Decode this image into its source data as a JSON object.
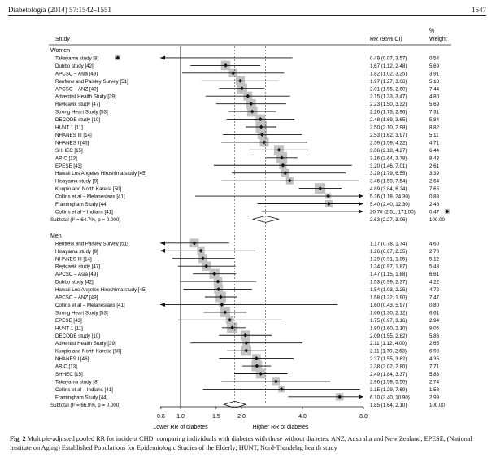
{
  "header": {
    "left": "Diabetologia (2014) 57:1542–1551",
    "right": "1547"
  },
  "columns": {
    "study": "Study",
    "rr": "RR (95% CI)",
    "weight_line1": "%",
    "weight_line2": "Weight"
  },
  "x_axis": {
    "ticks": [
      "0.8",
      "1.0",
      "1.5",
      "2.0",
      "4.0",
      "8.0"
    ],
    "left_label": "Lower RR of diabetes",
    "right_label": "Higher RR of diabetes"
  },
  "caption": {
    "label": "Fig. 2",
    "text": "Multiple-adjusted pooled RR for incident CHD, comparing individuals with diabetes with those without diabetes. ANZ, Australia and New Zealand; EPESE, (National Institute on Aging) Established Populations for Epidemiologic Studies of the Elderly; HUNT, Nord-Trøndelag health study"
  },
  "chart_data": {
    "type": "forest",
    "x_scale": "log",
    "xlim": [
      0.8,
      8.0
    ],
    "reference_line": 1.0,
    "groups": [
      {
        "name": "Women",
        "studies": [
          {
            "study": "Takayama study [8]",
            "rr": 0.49,
            "lo": 0.07,
            "hi": 3.57,
            "rr_text": "0.49 (0.07, 3.57)",
            "weight": "0.54",
            "weight_value": 0.54
          },
          {
            "study": "Dubbo study [42]",
            "rr": 1.67,
            "lo": 1.12,
            "hi": 2.48,
            "rr_text": "1.67 (1.12, 2.48)",
            "weight": "5.69",
            "weight_value": 5.69
          },
          {
            "study": "APCSC – Asia [49]",
            "rr": 1.82,
            "lo": 1.02,
            "hi": 3.25,
            "rr_text": "1.82 (1.02, 3.25)",
            "weight": "3.91",
            "weight_value": 3.91
          },
          {
            "study": "Renfrew and Paisley Survey [51]",
            "rr": 1.97,
            "lo": 1.27,
            "hi": 3.08,
            "rr_text": "1.97 (1.27, 3.08)",
            "weight": "5.18",
            "weight_value": 5.18
          },
          {
            "study": "APCSC – ANZ [49]",
            "rr": 2.01,
            "lo": 1.55,
            "hi": 2.6,
            "rr_text": "2.01 (1.55, 2.60)",
            "weight": "7.44",
            "weight_value": 7.44
          },
          {
            "study": "Adventist Health Study [39]",
            "rr": 2.15,
            "lo": 1.33,
            "hi": 3.47,
            "rr_text": "2.15 (1.33, 3.47)",
            "weight": "4.80",
            "weight_value": 4.8
          },
          {
            "study": "Reykjavik study [47]",
            "rr": 2.23,
            "lo": 1.5,
            "hi": 3.32,
            "rr_text": "2.23 (1.50, 3.32)",
            "weight": "5.69",
            "weight_value": 5.69
          },
          {
            "study": "Strong Heart Study [53]",
            "rr": 2.26,
            "lo": 1.73,
            "hi": 2.96,
            "rr_text": "2.26 (1.73, 2.96)",
            "weight": "7.31",
            "weight_value": 7.31
          },
          {
            "study": "DECODE study [10]",
            "rr": 2.48,
            "lo": 1.69,
            "hi": 3.65,
            "rr_text": "2.48 (1.69, 3.65)",
            "weight": "5.84",
            "weight_value": 5.84
          },
          {
            "study": "HUNT 1 [11]",
            "rr": 2.5,
            "lo": 2.1,
            "hi": 2.98,
            "rr_text": "2.50 (2.10, 2.98)",
            "weight": "8.82",
            "weight_value": 8.82
          },
          {
            "study": "NHANES III [14]",
            "rr": 2.53,
            "lo": 1.62,
            "hi": 3.97,
            "rr_text": "2.53 (1.62, 3.97)",
            "weight": "5.11",
            "weight_value": 5.11
          },
          {
            "study": "NHANES I [46]",
            "rr": 2.59,
            "lo": 1.59,
            "hi": 4.22,
            "rr_text": "2.59 (1.59, 4.22)",
            "weight": "4.71",
            "weight_value": 4.71
          },
          {
            "study": "SHHEC [15]",
            "rr": 3.06,
            "lo": 2.18,
            "hi": 4.27,
            "rr_text": "3.06 (2.18, 4.27)",
            "weight": "6.44",
            "weight_value": 6.44
          },
          {
            "study": "ARIC [13]",
            "rr": 3.16,
            "lo": 2.64,
            "hi": 3.78,
            "rr_text": "3.16 (2.64, 3.78)",
            "weight": "8.43",
            "weight_value": 8.43
          },
          {
            "study": "EPESE [43]",
            "rr": 3.2,
            "lo": 1.46,
            "hi": 7.01,
            "rr_text": "3.20 (1.46, 7.01)",
            "weight": "2.61",
            "weight_value": 2.61
          },
          {
            "study": "Hawaii Los Angeles Hiroshima study [45]",
            "rr": 3.29,
            "lo": 1.79,
            "hi": 6.55,
            "rr_text": "3.29 (1.79, 6.55)",
            "weight": "3.39",
            "weight_value": 3.39
          },
          {
            "study": "Hisayama study [9]",
            "rr": 3.46,
            "lo": 1.59,
            "hi": 7.54,
            "rr_text": "3.46 (1.59, 7.54)",
            "weight": "2.64",
            "weight_value": 2.64
          },
          {
            "study": "Kuopio and North Karelia [50]",
            "rr": 4.89,
            "lo": 3.84,
            "hi": 6.24,
            "rr_text": "4.89 (3.84, 6.24)",
            "weight": "7.65",
            "weight_value": 7.65
          },
          {
            "study": "Collins et al – Melanesians [41]",
            "rr": 5.36,
            "lo": 1.18,
            "hi": 24.3,
            "rr_text": "5.36 (1.18, 24.30)",
            "weight": "0.88",
            "weight_value": 0.88
          },
          {
            "study": "Framingham Study [44]",
            "rr": 5.4,
            "lo": 2.4,
            "hi": 12.3,
            "rr_text": "5.40 (2.40, 12.30)",
            "weight": "2.46",
            "weight_value": 2.46
          },
          {
            "study": "Collins et al – Indians [41]",
            "rr": 20.7,
            "lo": 2.51,
            "hi": 171.0,
            "rr_text": "20.70 (2.51, 171.00)",
            "weight": "0.47",
            "weight_value": 0.47
          }
        ],
        "subtotal": {
          "label": "Subtotal  (I² = 64.7%, p = 0.000)",
          "rr": 2.63,
          "lo": 2.27,
          "hi": 3.06,
          "rr_text": "2.63 (2.27, 3.06)",
          "weight": "100.00"
        }
      },
      {
        "name": "Men",
        "studies": [
          {
            "study": "Renfrew and Paisley Survey [51]",
            "rr": 1.17,
            "lo": 0.78,
            "hi": 1.74,
            "rr_text": "1.17 (0.78, 1.74)",
            "weight": "4.60",
            "weight_value": 4.6
          },
          {
            "study": "Hisayama study [9]",
            "rr": 1.26,
            "lo": 0.67,
            "hi": 2.35,
            "rr_text": "1.26 (0.67, 2.35)",
            "weight": "2.70",
            "weight_value": 2.7
          },
          {
            "study": "NHANES III [14]",
            "rr": 1.29,
            "lo": 0.91,
            "hi": 1.85,
            "rr_text": "1.29 (0.91, 1.85)",
            "weight": "5.12",
            "weight_value": 5.12
          },
          {
            "study": "Reykjavik study [47]",
            "rr": 1.34,
            "lo": 0.97,
            "hi": 1.87,
            "rr_text": "1.34 (0.97, 1.87)",
            "weight": "5.48",
            "weight_value": 5.48
          },
          {
            "study": "APCSC – Asia [49]",
            "rr": 1.47,
            "lo": 1.15,
            "hi": 1.88,
            "rr_text": "1.47 (1.15, 1.88)",
            "weight": "6.61",
            "weight_value": 6.61
          },
          {
            "study": "Dubbo study [42]",
            "rr": 1.53,
            "lo": 0.99,
            "hi": 2.37,
            "rr_text": "1.53 (0.99, 2.37)",
            "weight": "4.22",
            "weight_value": 4.22
          },
          {
            "study": "Hawaii Los Angeles Hiroshima study [45]",
            "rr": 1.54,
            "lo": 1.03,
            "hi": 2.25,
            "rr_text": "1.54 (1.03, 2.25)",
            "weight": "4.72",
            "weight_value": 4.72
          },
          {
            "study": "APCSC – ANZ [49]",
            "rr": 1.58,
            "lo": 1.32,
            "hi": 1.9,
            "rr_text": "1.58 (1.32, 1.90)",
            "weight": "7.47",
            "weight_value": 7.47
          },
          {
            "study": "Collins et al – Melanesians [41]",
            "rr": 1.6,
            "lo": 0.43,
            "hi": 5.97,
            "rr_text": "1.60 (0.43, 5.97)",
            "weight": "0.80",
            "weight_value": 0.8
          },
          {
            "study": "Strong Heart Study [53]",
            "rr": 1.66,
            "lo": 1.3,
            "hi": 2.12,
            "rr_text": "1.66 (1.30, 2.12)",
            "weight": "6.61",
            "weight_value": 6.61
          },
          {
            "study": "EPESE [43]",
            "rr": 1.75,
            "lo": 0.97,
            "hi": 3.16,
            "rr_text": "1.75 (0.97, 3.16)",
            "weight": "2.94",
            "weight_value": 2.94
          },
          {
            "study": "HUNT 1 [11]",
            "rr": 1.8,
            "lo": 1.6,
            "hi": 2.1,
            "rr_text": "1.80 (1.60, 2.10)",
            "weight": "8.06",
            "weight_value": 8.06
          },
          {
            "study": "DECODE study [10]",
            "rr": 2.09,
            "lo": 1.55,
            "hi": 2.82,
            "rr_text": "2.09 (1.55, 2.82)",
            "weight": "5.86",
            "weight_value": 5.86
          },
          {
            "study": "Adventist Health Study [39]",
            "rr": 2.11,
            "lo": 1.12,
            "hi": 4.0,
            "rr_text": "2.11 (1.12, 4.00)",
            "weight": "2.65",
            "weight_value": 2.65
          },
          {
            "study": "Kuopio and North Karelia [50]",
            "rr": 2.11,
            "lo": 1.7,
            "hi": 2.63,
            "rr_text": "2.11 (1.70, 2.63)",
            "weight": "6.98",
            "weight_value": 6.98
          },
          {
            "study": "NHANES I [46]",
            "rr": 2.37,
            "lo": 1.55,
            "hi": 3.62,
            "rr_text": "2.37 (1.55, 3.62)",
            "weight": "4.35",
            "weight_value": 4.35
          },
          {
            "study": "ARIC [13]",
            "rr": 2.38,
            "lo": 2.02,
            "hi": 2.8,
            "rr_text": "2.38 (2.02, 2.80)",
            "weight": "7.71",
            "weight_value": 7.71
          },
          {
            "study": "SHHEC [15]",
            "rr": 2.49,
            "lo": 1.84,
            "hi": 3.37,
            "rr_text": "2.49 (1.84, 3.37)",
            "weight": "5.83",
            "weight_value": 5.83
          },
          {
            "study": "Takayama study [8]",
            "rr": 2.96,
            "lo": 1.59,
            "hi": 5.5,
            "rr_text": "2.96 (1.59, 5.50)",
            "weight": "2.74",
            "weight_value": 2.74
          },
          {
            "study": "Collins et al – Indians [41]",
            "rr": 3.15,
            "lo": 1.29,
            "hi": 7.69,
            "rr_text": "3.15 (1.29, 7.69)",
            "weight": "1.58",
            "weight_value": 1.58
          },
          {
            "study": "Framingham Study [44]",
            "rr": 6.1,
            "lo": 3.4,
            "hi": 10.9,
            "rr_text": "6.10 (3.40, 10.90)",
            "weight": "2.99",
            "weight_value": 2.99
          }
        ],
        "subtotal": {
          "label": "Subtotal  (I² = 66.0%, p = 0.000)",
          "rr": 1.85,
          "lo": 1.64,
          "hi": 2.1,
          "rr_text": "1.85 (1.64, 2.10)",
          "weight": "100.00"
        }
      }
    ]
  }
}
